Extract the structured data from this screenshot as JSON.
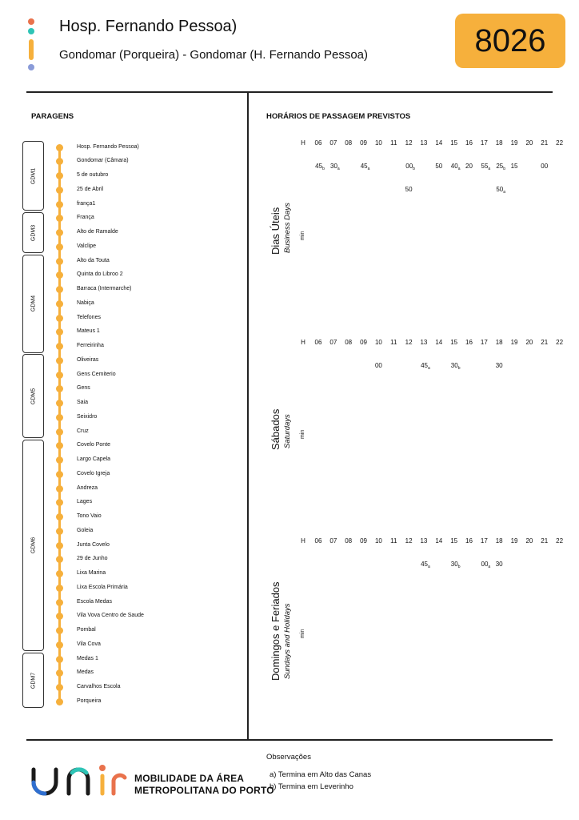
{
  "header": {
    "title": "Hosp. Fernando Pessoa)",
    "subtitle": "Gondomar (Porqueira) - Gondomar (H. Fernando Pessoa)",
    "route_number": "8026",
    "dot_colors": [
      "#e9724c",
      "#2ec4b6",
      "#f6b03c",
      "#8a9bd8"
    ]
  },
  "stops_section": {
    "heading": "PARAGENS",
    "stops": [
      "Hosp. Fernando Pessoa)",
      "Gondomar (Câmara)",
      "5 de outubro",
      "25 de Abril",
      "frança1",
      "França",
      "Alto de Ramalde",
      "Valclipe",
      "Alto da Touta",
      "Quinta do Libroo 2",
      "Barraca (Intermarche)",
      "Nabiça",
      "Telefones",
      "Mateus 1",
      "Ferreirinha",
      "Oliveiras",
      "Gens Cemiterio",
      "Gens",
      "Saia",
      "Seixidro",
      "Cruz",
      "Covelo Ponte",
      "Largo Capela",
      "Covelo Igreja",
      "Andreza",
      "Lages",
      "Tono Vaio",
      "Goleia",
      "Junta Covelo",
      "29 de Junho",
      "Lixa Marina",
      "Lixa Escola Primária",
      "Escola Medas",
      "Vila Vova Centro de Saude",
      "Pombal",
      "Vila Cova",
      "Medas 1",
      "Medas",
      "Carvalhos Escola",
      "Porqueira"
    ],
    "zones": [
      {
        "label": "GDM1",
        "from": 0,
        "to": 4
      },
      {
        "label": "GDM3",
        "from": 5,
        "to": 7
      },
      {
        "label": "GDM4",
        "from": 8,
        "to": 14
      },
      {
        "label": "GDM5",
        "from": 15,
        "to": 20
      },
      {
        "label": "GDM6",
        "from": 21,
        "to": 35
      },
      {
        "label": "GDM7",
        "from": 36,
        "to": 39
      }
    ]
  },
  "schedule": {
    "heading": "HORÁRIOS DE PASSAGEM PREVISTOS",
    "hour_label": "H",
    "min_label": "min",
    "hours": [
      "06",
      "07",
      "08",
      "09",
      "10",
      "11",
      "12",
      "13",
      "14",
      "15",
      "16",
      "17",
      "18",
      "19",
      "20",
      "21",
      "22"
    ],
    "blocks": [
      {
        "title": "Dias Úteis",
        "subtitle": "Business Days",
        "rows": [
          [
            {
              "h": "06",
              "m": "45",
              "s": "b"
            },
            {
              "h": "07",
              "m": "30",
              "s": "a"
            },
            {
              "h": "09",
              "m": "45",
              "s": "a"
            },
            {
              "h": "12",
              "m": "00",
              "s": "b"
            },
            {
              "h": "14",
              "m": "50",
              "s": ""
            },
            {
              "h": "15",
              "m": "40",
              "s": "a"
            },
            {
              "h": "16",
              "m": "20",
              "s": ""
            },
            {
              "h": "17",
              "m": "55",
              "s": "a"
            },
            {
              "h": "18",
              "m": "25",
              "s": "b"
            },
            {
              "h": "19",
              "m": "15",
              "s": ""
            },
            {
              "h": "21",
              "m": "00",
              "s": ""
            }
          ],
          [
            {
              "h": "12",
              "m": "50",
              "s": ""
            },
            {
              "h": "18",
              "m": "50",
              "s": "a"
            }
          ]
        ]
      },
      {
        "title": "Sábados",
        "subtitle": "Saturdays",
        "rows": [
          [
            {
              "h": "10",
              "m": "00",
              "s": ""
            },
            {
              "h": "13",
              "m": "45",
              "s": "a"
            },
            {
              "h": "15",
              "m": "30",
              "s": "b"
            },
            {
              "h": "18",
              "m": "30",
              "s": ""
            }
          ]
        ]
      },
      {
        "title": "Domingos e Feriados",
        "subtitle": "Sundays and Holidays",
        "rows": [
          [
            {
              "h": "13",
              "m": "45",
              "s": "a"
            },
            {
              "h": "15",
              "m": "30",
              "s": "b"
            },
            {
              "h": "17",
              "m": "00",
              "s": "a"
            },
            {
              "h": "18",
              "m": "30",
              "s": ""
            }
          ]
        ]
      }
    ]
  },
  "footer": {
    "observations_title": "Observações",
    "observations": [
      "a) Termina em Alto das Canas",
      "b) Termina em Leverinho"
    ],
    "brand_line1": "MOBILIDADE DA ÁREA",
    "brand_line2": "METROPOLITANA DO PORTO"
  }
}
